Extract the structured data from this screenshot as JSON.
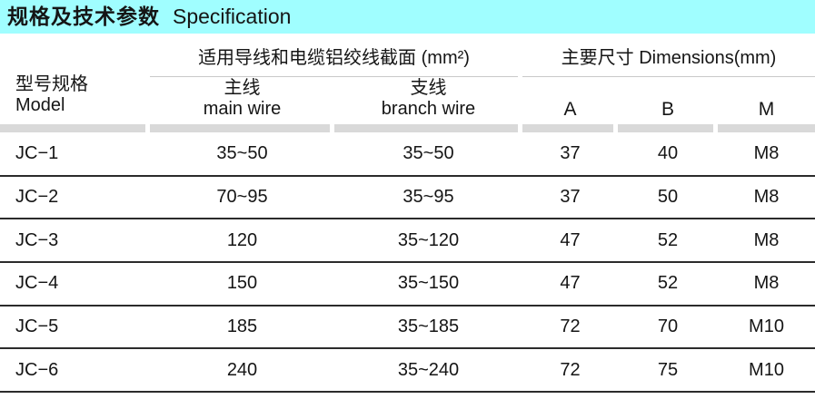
{
  "title": {
    "zh": "规格及技术参数",
    "en": "Specification"
  },
  "table": {
    "model_header": {
      "zh": "型号规格",
      "en": "Model"
    },
    "groups": [
      {
        "label": "适用导线和电缆铝绞线截面 (mm²)"
      },
      {
        "label": "主要尺寸 Dimensions(mm)"
      }
    ],
    "sub_columns": [
      {
        "zh": "主线",
        "en": "main wire"
      },
      {
        "zh": "支线",
        "en": "branch wire"
      },
      {
        "label": "A"
      },
      {
        "label": "B"
      },
      {
        "label": "M"
      }
    ],
    "rows": [
      {
        "model": "JC−1",
        "main_wire": "35~50",
        "branch_wire": "35~50",
        "A": "37",
        "B": "40",
        "M": "M8"
      },
      {
        "model": "JC−2",
        "main_wire": "70~95",
        "branch_wire": "35~95",
        "A": "37",
        "B": "50",
        "M": "M8"
      },
      {
        "model": "JC−3",
        "main_wire": "120",
        "branch_wire": "35~120",
        "A": "47",
        "B": "52",
        "M": "M8"
      },
      {
        "model": "JC−4",
        "main_wire": "150",
        "branch_wire": "35~150",
        "A": "47",
        "B": "52",
        "M": "M8"
      },
      {
        "model": "JC−5",
        "main_wire": "185",
        "branch_wire": "35~185",
        "A": "72",
        "B": "70",
        "M": "M10"
      },
      {
        "model": "JC−6",
        "main_wire": "240",
        "branch_wire": "35~240",
        "A": "72",
        "B": "75",
        "M": "M10"
      }
    ]
  },
  "colors": {
    "title_bg": "#a0feff",
    "separator_band": "#d9d9d9",
    "row_line": "#2b2b2b",
    "header_underline": "#c9c9c9",
    "text": "#151515"
  }
}
